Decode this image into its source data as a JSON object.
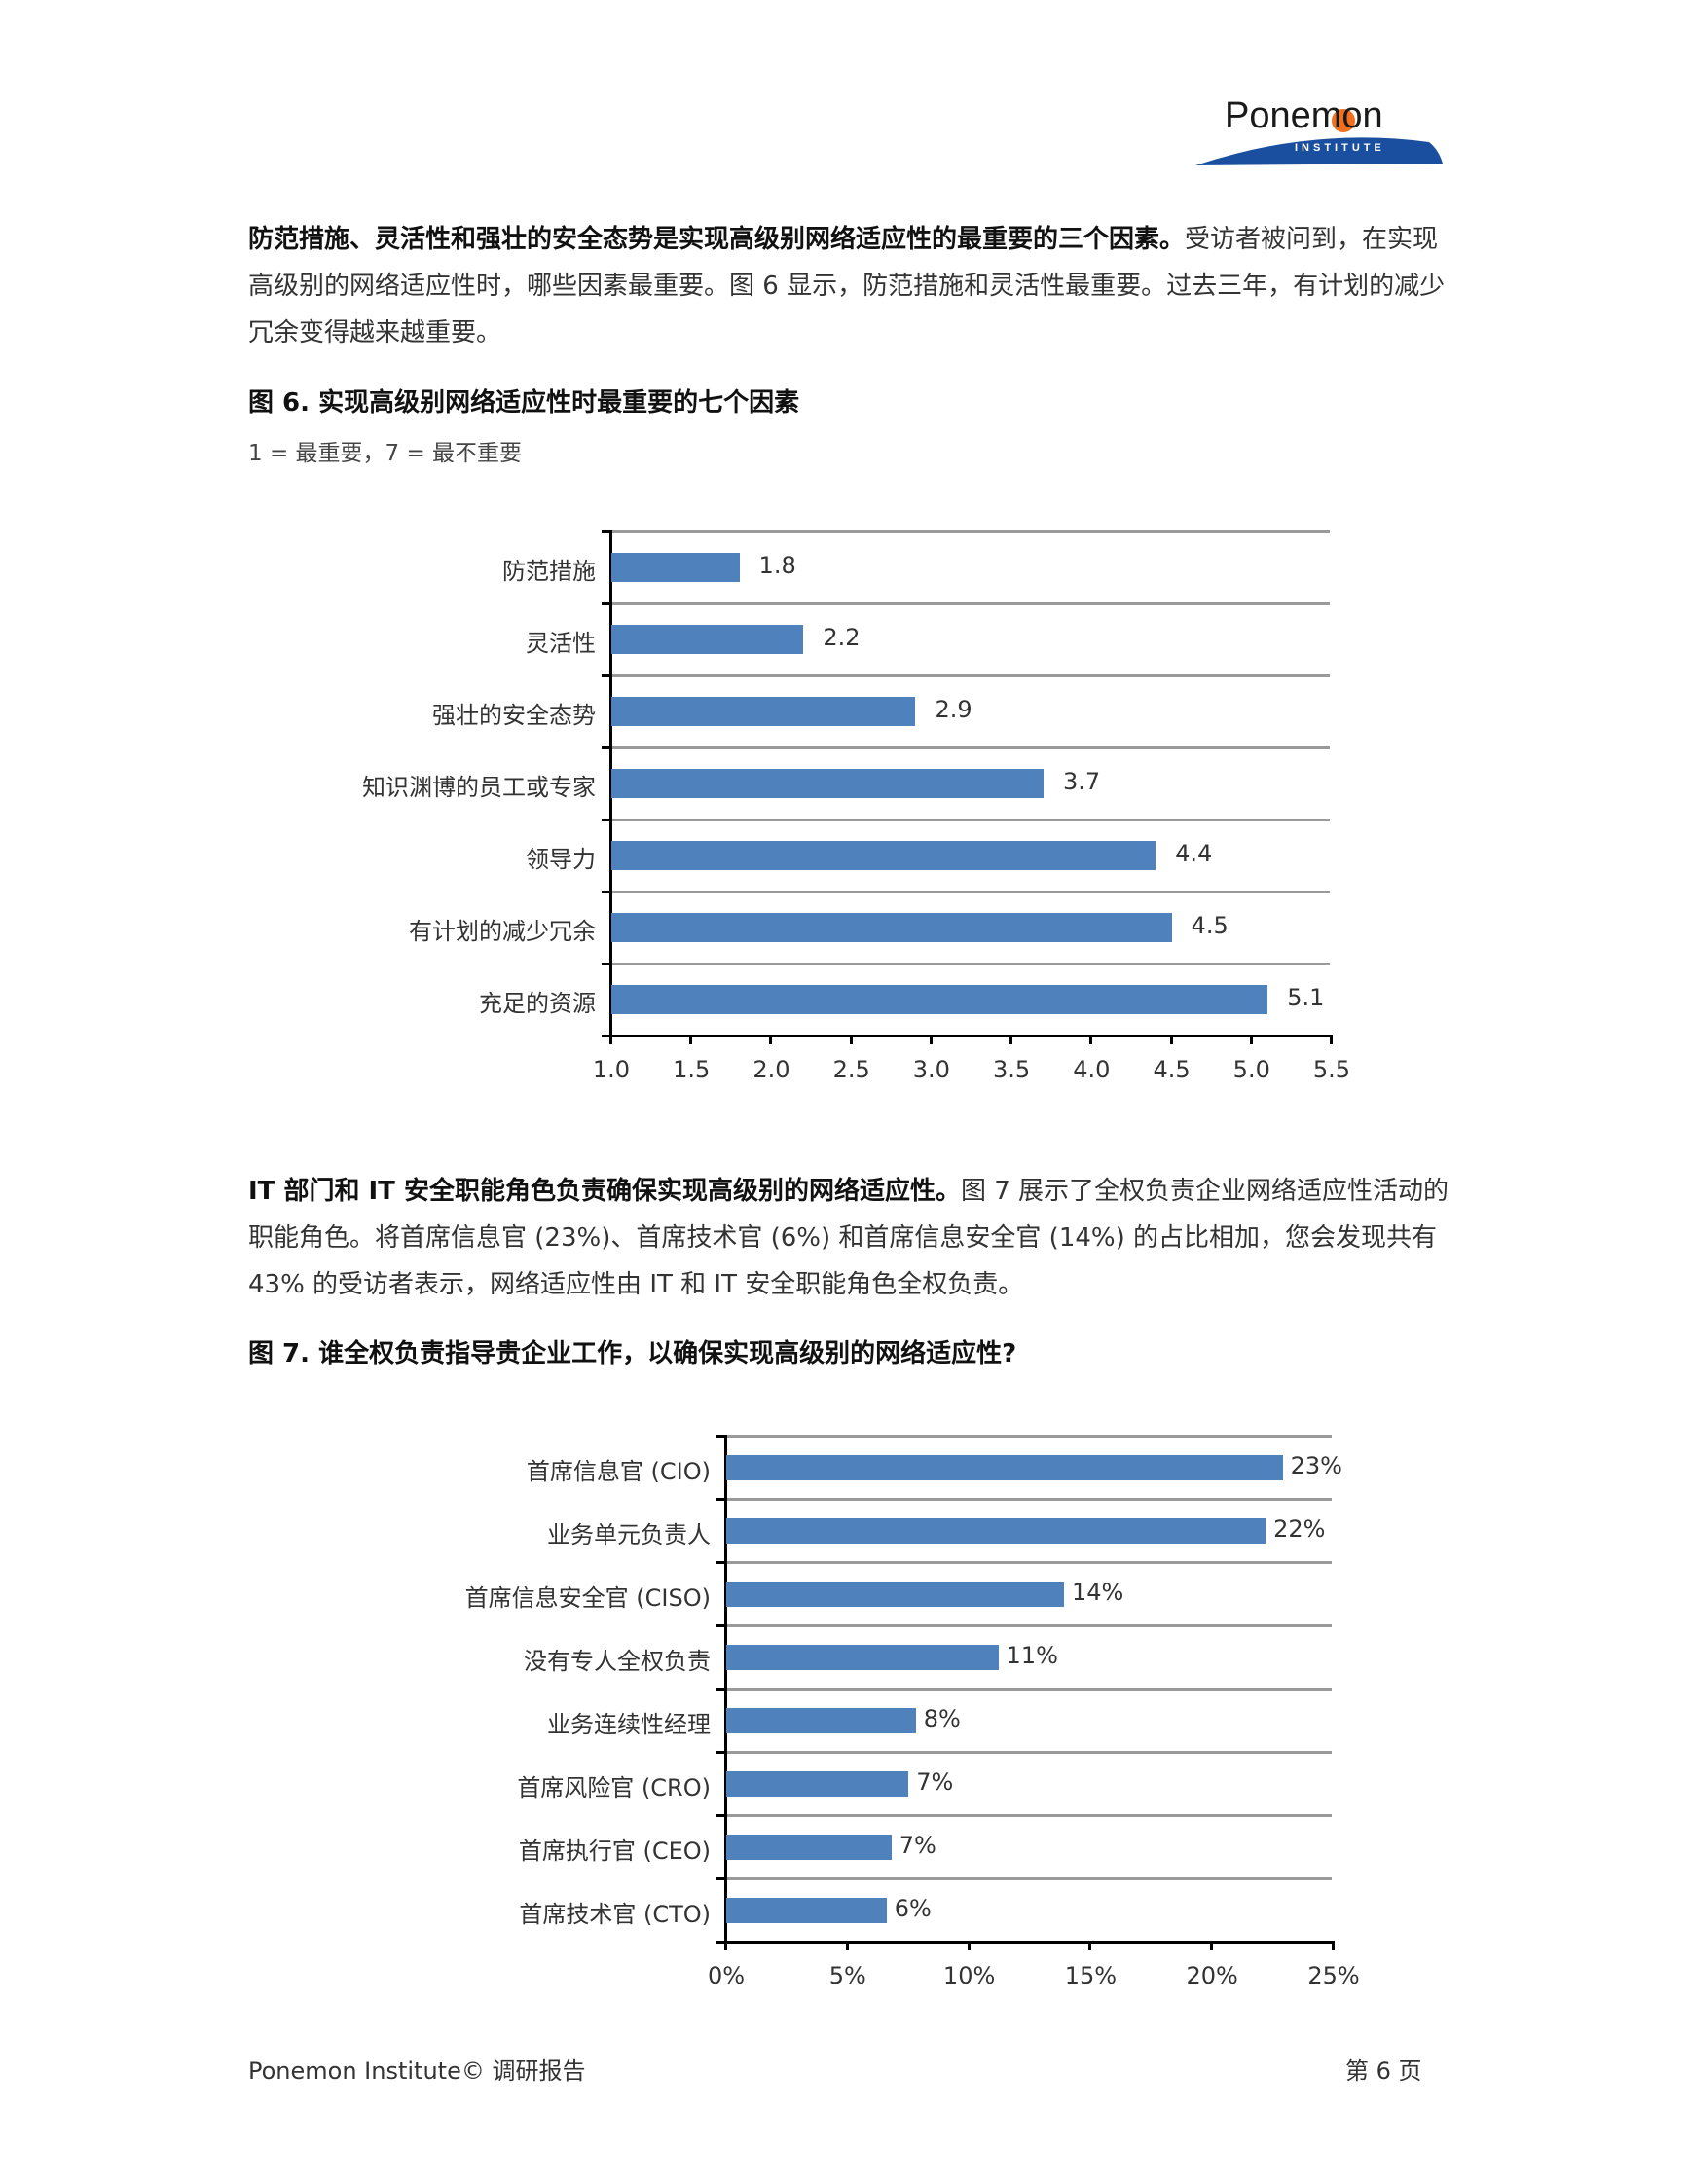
{
  "logo": {
    "word": "Ponemon",
    "sub": "INSTITUTE"
  },
  "section1": {
    "bold": "防范措施、灵活性和强壮的安全态势是实现高级别网络适应性的最重要的三个因素。",
    "text": "受访者被问到，在实现高级别的网络适应性时，哪些因素最重要。图 6 显示，防范措施和灵活性最重要。过去三年，有计划的减少冗余变得越来越重要。"
  },
  "figure6": {
    "title": "图 6. 实现高级别网络适应性时最重要的七个因素",
    "subtitle": "1 = 最重要，7 = 最不重要"
  },
  "section2": {
    "bold": "IT 部门和 IT 安全职能角色负责确保实现高级别的网络适应性。",
    "text": "图 7 展示了全权负责企业网络适应性活动的职能角色。将首席信息官 (23%)、首席技术官 (6%) 和首席信息安全官 (14%) 的占比相加，您会发现共有 43% 的受访者表示，网络适应性由 IT 和 IT 安全职能角色全权负责。"
  },
  "figure7": {
    "title": "图 7. 谁全权负责指导贵企业工作，以确保实现高级别的网络适应性?"
  },
  "footer": {
    "left": "Ponemon Institute© 调研报告",
    "right": "第 6 页"
  },
  "colors": {
    "bar": "#4f81bd",
    "grid": "#9a9a9a",
    "axis": "#000000",
    "logo_sun": "#f07020",
    "logo_swoosh": "#1a4fa0"
  },
  "chart_data": [
    {
      "type": "bar",
      "orientation": "horizontal",
      "title": "图 6. 实现高级别网络适应性时最重要的七个因素",
      "subtitle": "1 = 最重要，7 = 最不重要",
      "categories": [
        "防范措施",
        "灵活性",
        "强壮的安全态势",
        "知识渊博的员工或专家",
        "领导力",
        "有计划的减少冗余",
        "充足的资源"
      ],
      "values": [
        1.8,
        2.2,
        2.9,
        3.7,
        4.4,
        4.5,
        5.1
      ],
      "value_labels": [
        "1.8",
        "2.2",
        "2.9",
        "3.7",
        "4.4",
        "4.5",
        "5.1"
      ],
      "xlim": [
        1.0,
        5.5
      ],
      "xticks": [
        "1.0",
        "1.5",
        "2.0",
        "2.5",
        "3.0",
        "3.5",
        "4.0",
        "4.5",
        "5.0",
        "5.5"
      ],
      "xlabel": "",
      "ylabel": "",
      "grid": true,
      "legend": null
    },
    {
      "type": "bar",
      "orientation": "horizontal",
      "title": "图 7. 谁全权负责指导贵企业工作，以确保实现高级别的网络适应性?",
      "categories": [
        "首席信息官 (CIO)",
        "业务单元负责人",
        "首席信息安全官 (CISO)",
        "没有专人全权负责",
        "业务连续性经理",
        "首席风险官 (CRO)",
        "首席执行官 (CEO)",
        "首席技术官 (CTO)"
      ],
      "values": [
        23,
        22,
        14,
        11,
        8,
        7,
        7,
        6
      ],
      "value_labels": [
        "23%",
        "22%",
        "14%",
        "11%",
        "8%",
        "7%",
        "7%",
        "6%"
      ],
      "bar_extents_pct": [
        22.9,
        22.2,
        13.9,
        11.2,
        7.8,
        7.5,
        6.8,
        6.6
      ],
      "xlim": [
        0,
        25
      ],
      "xticks": [
        "0%",
        "5%",
        "10%",
        "15%",
        "20%",
        "25%"
      ],
      "xlabel": "",
      "ylabel": "",
      "grid": true,
      "legend": null
    }
  ]
}
